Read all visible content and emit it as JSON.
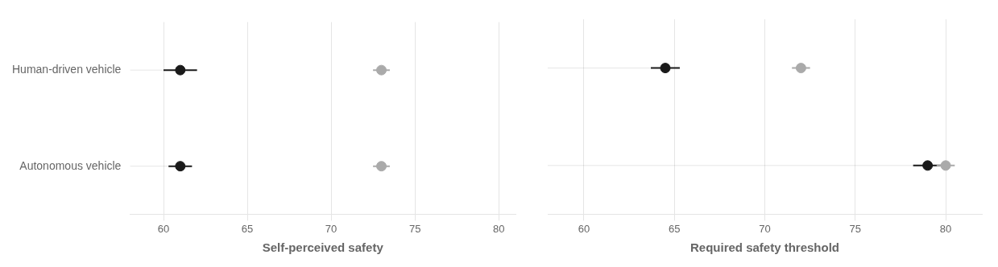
{
  "chart_data": [
    {
      "type": "dot",
      "x_label": "Self-perceived safety",
      "categories": [
        "Human-driven vehicle",
        "Autonomous vehicle"
      ],
      "series": [
        {
          "color": "#1a1a1a",
          "values": [
            61.0,
            61.0
          ],
          "error_minus": [
            1.0,
            0.7
          ],
          "error_plus": [
            1.0,
            0.7
          ]
        },
        {
          "color": "#aaaaaa",
          "values": [
            73.0,
            73.0
          ],
          "error_minus": [
            0.5,
            0.5
          ],
          "error_plus": [
            0.5,
            0.5
          ]
        }
      ],
      "xlim": [
        58,
        81
      ],
      "xticks": [
        60,
        65,
        70,
        75,
        80
      ],
      "grid": true
    },
    {
      "type": "dot",
      "x_label": "Required safety threshold",
      "categories": [
        "Human-driven vehicle",
        "Autonomous vehicle"
      ],
      "series": [
        {
          "color": "#1a1a1a",
          "values": [
            64.5,
            79.0
          ],
          "error_minus": [
            0.8,
            0.8
          ],
          "error_plus": [
            0.8,
            0.8
          ]
        },
        {
          "color": "#aaaaaa",
          "values": [
            72.0,
            80.0
          ],
          "error_minus": [
            0.5,
            0.5
          ],
          "error_plus": [
            0.5,
            0.5
          ]
        }
      ],
      "xlim": [
        58,
        82
      ],
      "xticks": [
        60,
        65,
        70,
        75,
        80
      ],
      "grid": true,
      "tick_labels": "x"
    }
  ]
}
